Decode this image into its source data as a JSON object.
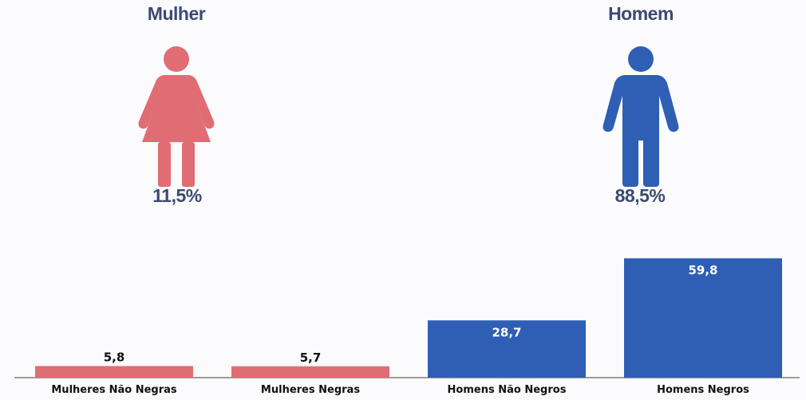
{
  "summary": {
    "female": {
      "title": "Mulher",
      "percent": "11,5%",
      "share": 11.5,
      "color": "#e06d73"
    },
    "male": {
      "title": "Homem",
      "percent": "88,5%",
      "share": 88.5,
      "color": "#2e5fb5"
    }
  },
  "chart_data": {
    "type": "bar",
    "categories": [
      "Mulheres Não Negras",
      "Mulheres Negras",
      "Homens Não Negros",
      "Homens Negros"
    ],
    "values": [
      5.8,
      5.7,
      28.7,
      59.8
    ],
    "value_labels": [
      "5,8",
      "5,7",
      "28,7",
      "59,8"
    ],
    "colors": [
      "#e06d73",
      "#e06d73",
      "#2e5fb5",
      "#2e5fb5"
    ],
    "title": "",
    "xlabel": "",
    "ylabel": "",
    "ylim": [
      0,
      100
    ],
    "grid": false
  }
}
